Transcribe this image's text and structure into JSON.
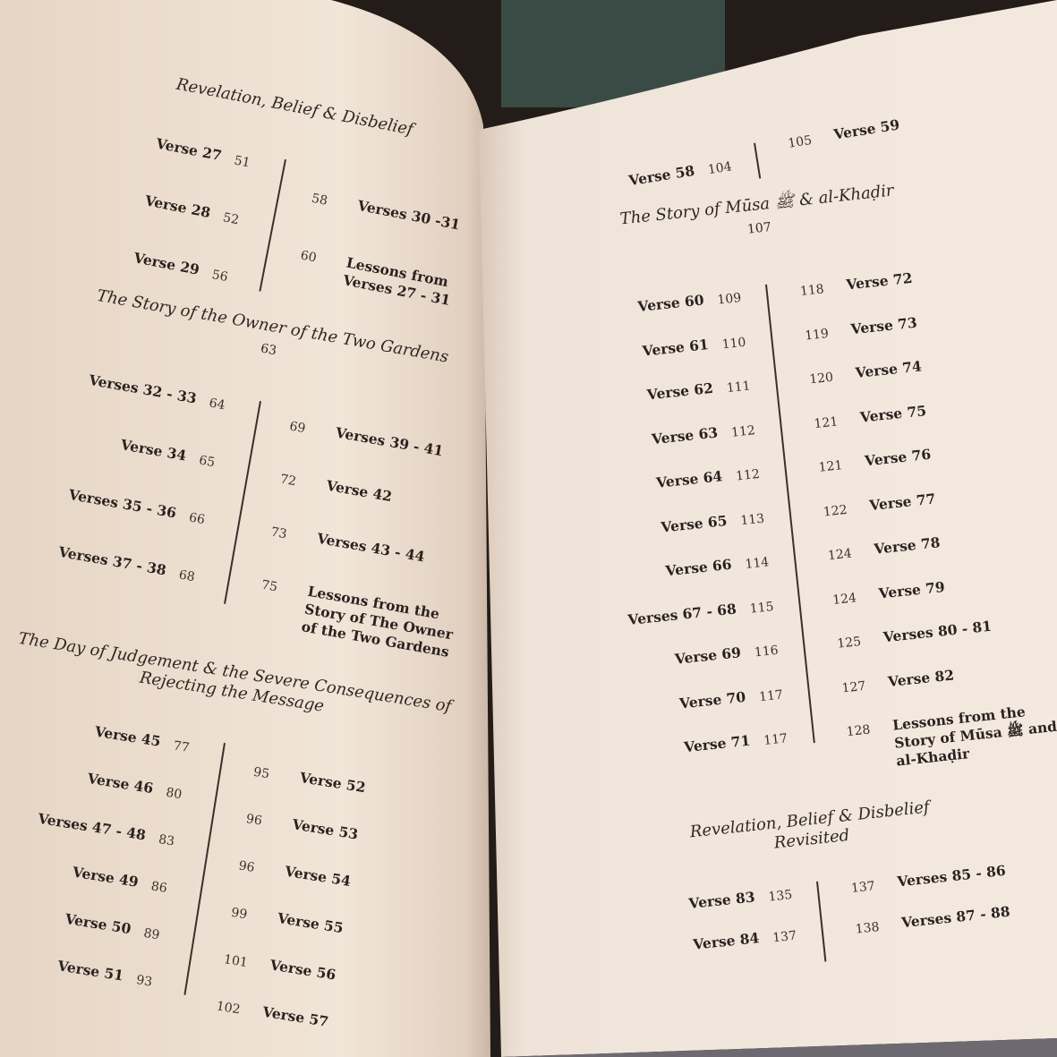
{
  "left_page": {
    "sections": [
      {
        "title": "Revelation, Belief & Disbelief",
        "page": "",
        "left": [
          [
            "Verse 27",
            "51"
          ],
          [
            "Verse 28",
            "52"
          ],
          [
            "Verse 29",
            "56"
          ]
        ],
        "right": [
          [
            "58",
            "Verses 30 -31"
          ],
          [
            "60",
            "Lessons from Verses 27 - 31"
          ]
        ]
      },
      {
        "title": "The Story of the Owner of the Two Gardens",
        "page": "63",
        "left": [
          [
            "Verses 32 - 33",
            "64"
          ],
          [
            "Verse 34",
            "65"
          ],
          [
            "Verses 35 - 36",
            "66"
          ],
          [
            "Verses 37 - 38",
            "68"
          ]
        ],
        "right": [
          [
            "69",
            "Verses 39 - 41"
          ],
          [
            "72",
            "Verse 42"
          ],
          [
            "73",
            "Verses 43 - 44"
          ],
          [
            "75",
            "Lessons from the Story of The Owner of the Two Gardens"
          ]
        ]
      },
      {
        "title": "The Day of Judgement & the Severe Consequences of Rejecting the Message",
        "page": "",
        "left": [
          [
            "Verse 45",
            "77"
          ],
          [
            "Verse 46",
            "80"
          ],
          [
            "Verses 47 - 48",
            "83"
          ],
          [
            "Verse 49",
            "86"
          ],
          [
            "Verse 50",
            "89"
          ],
          [
            "Verse 51",
            "93"
          ]
        ],
        "right": [
          [
            "95",
            "Verse 52"
          ],
          [
            "96",
            "Verse 53"
          ],
          [
            "96",
            "Verse 54"
          ],
          [
            "99",
            "Verse 55"
          ],
          [
            "101",
            "Verse 56"
          ],
          [
            "102",
            "Verse 57"
          ]
        ]
      }
    ]
  },
  "right_page": {
    "sections": [
      {
        "title": "",
        "page": "",
        "left": [
          [
            "Verse 58",
            "104"
          ]
        ],
        "right": [
          [
            "105",
            "Verse 59"
          ]
        ]
      },
      {
        "title": "The Story of Mūsa ﷺ & al-Khaḍir",
        "page": "107",
        "left": [
          [
            "Verse 60",
            "109"
          ],
          [
            "Verse 61",
            "110"
          ],
          [
            "Verse 62",
            "111"
          ],
          [
            "Verse 63",
            "112"
          ],
          [
            "Verse 64",
            "112"
          ],
          [
            "Verse 65",
            "113"
          ],
          [
            "Verse 66",
            "114"
          ],
          [
            "Verses 67 - 68",
            "115"
          ],
          [
            "Verse 69",
            "116"
          ],
          [
            "Verse 70",
            "117"
          ],
          [
            "Verse 71",
            "117"
          ]
        ],
        "right": [
          [
            "118",
            "Verse 72"
          ],
          [
            "119",
            "Verse 73"
          ],
          [
            "120",
            "Verse 74"
          ],
          [
            "121",
            "Verse 75"
          ],
          [
            "121",
            "Verse 76"
          ],
          [
            "122",
            "Verse 77"
          ],
          [
            "124",
            "Verse 78"
          ],
          [
            "124",
            "Verse 79"
          ],
          [
            "125",
            "Verses 80 - 81"
          ],
          [
            "127",
            "Verse 82"
          ],
          [
            "128",
            "Lessons from the Story of Mūsa ﷺ and al-Khaḍir"
          ]
        ]
      },
      {
        "title": "Revelation, Belief & Disbelief Revisited",
        "page": "",
        "left": [
          [
            "Verse 83",
            "135"
          ],
          [
            "Verse 84",
            "137"
          ]
        ],
        "right": [
          [
            "137",
            "Verses 85 - 86"
          ],
          [
            "138",
            "Verses 87 - 88"
          ]
        ]
      }
    ]
  },
  "colors": {
    "background": "#241c18",
    "page_left": "#efe2d4",
    "page_right": "#f1e7dd",
    "ink": "#2b2320"
  }
}
